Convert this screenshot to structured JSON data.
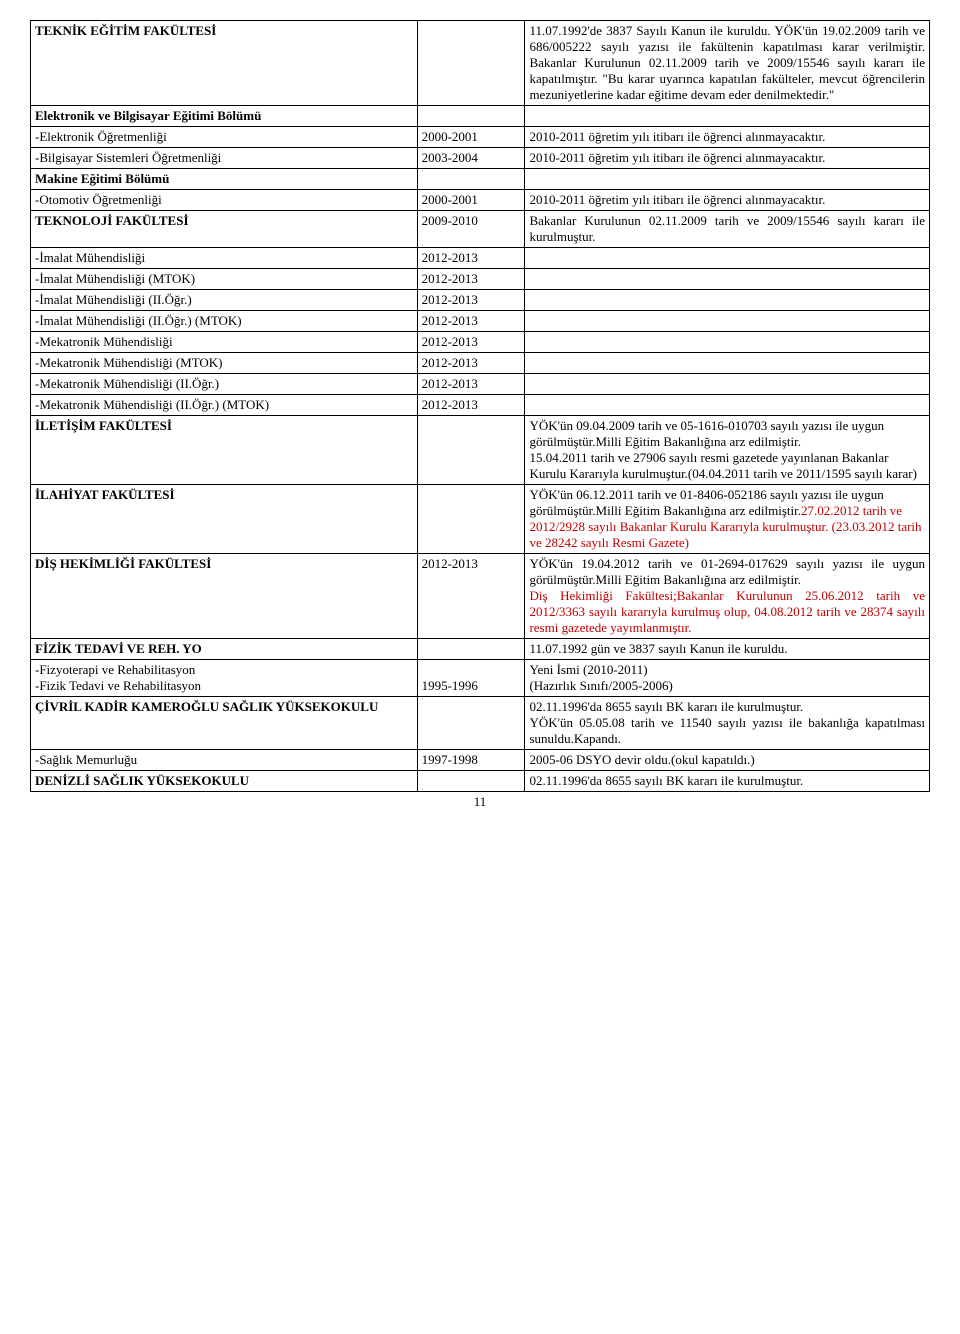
{
  "rows": [
    {
      "c1": "TEKNİK EĞİTİM FAKÜLTESİ",
      "c1Bold": true,
      "c2": "",
      "c3": "11.07.1992'de 3837 Sayılı Kanun ile kuruldu. YÖK'ün 19.02.2009 tarih ve 686/005222 sayılı yazısı ile fakültenin kapatılması karar verilmiştir. Bakanlar Kurulunun 02.11.2009 tarih ve 2009/15546 sayılı kararı ile kapatılmıştır. \"Bu karar uyarınca kapatılan fakülteler, mevcut öğrencilerin mezuniyetlerine kadar eğitime devam eder denilmektedir.\"",
      "c3Justify": true
    },
    {
      "c1": "Elektronik ve Bilgisayar Eğitimi Bölümü",
      "c1Bold": true,
      "c2": "",
      "c3": ""
    },
    {
      "c1": "-Elektronik Öğretmenliği",
      "c2": "2000-2001",
      "c3": "2010-2011 öğretim yılı itibarı ile öğrenci alınmayacaktır."
    },
    {
      "c1": "-Bilgisayar Sistemleri Öğretmenliği",
      "c2": "2003-2004",
      "c3": "2010-2011 öğretim yılı itibarı ile öğrenci alınmayacaktır."
    },
    {
      "c1": "Makine Eğitimi Bölümü",
      "c1Bold": true,
      "c2": "",
      "c3": ""
    },
    {
      "c1": "-Otomotiv Öğretmenliği",
      "c2": "2000-2001",
      "c3": "2010-2011 öğretim yılı itibarı ile öğrenci alınmayacaktır.",
      "c3Justify": true
    },
    {
      "c1": "TEKNOLOJİ FAKÜLTESİ",
      "c1Bold": true,
      "c2": "2009-2010",
      "c3": "Bakanlar Kurulunun 02.11.2009 tarih ve 2009/15546 sayılı kararı ile kurulmuştur.",
      "c3Justify": true
    },
    {
      "c1": "-İmalat Mühendisliği",
      "c2": "2012-2013",
      "c3": ""
    },
    {
      "c1": "-İmalat Mühendisliği (MTOK)",
      "c2": "2012-2013",
      "c3": ""
    },
    {
      "c1": "-İmalat Mühendisliği (II.Öğr.)",
      "c2": "2012-2013",
      "c3": ""
    },
    {
      "c1": "-İmalat Mühendisliği (II.Öğr.) (MTOK)",
      "c2": "2012-2013",
      "c3": ""
    },
    {
      "c1": "-Mekatronik Mühendisliği",
      "c2": "2012-2013",
      "c3": ""
    },
    {
      "c1": "-Mekatronik Mühendisliği (MTOK)",
      "c2": "2012-2013",
      "c3": ""
    },
    {
      "c1": "-Mekatronik Mühendisliği (II.Öğr.)",
      "c2": "2012-2013",
      "c3": ""
    },
    {
      "c1": "-Mekatronik Mühendisliği (II.Öğr.) (MTOK)",
      "c2": "2012-2013",
      "c3": ""
    },
    {
      "c1": "İLETİŞİM FAKÜLTESİ",
      "c1Bold": true,
      "c2": "",
      "c3": "YÖK'ün 09.04.2009 tarih ve 05-1616-010703 sayılı yazısı ile uygun görülmüştür.Milli Eğitim Bakanlığına arz edilmiştir.\n15.04.2011 tarih ve 27906 sayılı resmi gazetede yayınlanan Bakanlar Kurulu Kararıyla kurulmuştur.(04.04.2011 tarih ve 2011/1595 sayılı karar)"
    },
    {
      "c1": "İLAHİYAT FAKÜLTESİ",
      "c1Bold": true,
      "c2": "",
      "c3Parts": [
        {
          "text": "YÖK'ün 06.12.2011 tarih ve 01-8406-052186 sayılı yazısı ile uygun görülmüştür.Milli Eğitim Bakanlığına arz edilmiştir."
        },
        {
          "text": "27.02.2012 tarih ve 2012/2928 sayılı Bakanlar Kurulu Kararıyla kurulmuştur. (23.03.2012 tarih ve 28242 sayılı Resmi Gazete)",
          "red": true
        }
      ]
    },
    {
      "c1": "DİŞ HEKİMLİĞİ FAKÜLTESİ",
      "c1Bold": true,
      "c2": "2012-2013",
      "c3Parts": [
        {
          "text": "YÖK'ün 19.04.2012 tarih ve 01-2694-017629 sayılı yazısı ile uygun görülmüştür.Milli Eğitim Bakanlığına arz edilmiştir.\n"
        },
        {
          "text": "Diş Hekimliği Fakültesi;Bakanlar Kurulunun 25.06.2012 tarih ve 2012/3363 sayılı kararıyla kurulmuş olup, 04.08.2012 tarih ve 28374 sayılı resmi gazetede yayımlanmıştır.",
          "red": true,
          "justify": true
        }
      ]
    },
    {
      "c1": "FİZİK TEDAVİ VE REH. YO",
      "c1Bold": true,
      "c2": "",
      "c3": "11.07.1992 gün ve 3837 sayılı Kanun ile kuruldu."
    },
    {
      "multiline": true,
      "c1Lines": [
        "-Fizyoterapi ve Rehabilitasyon",
        "-Fizik Tedavi ve Rehabilitasyon"
      ],
      "c2": "\n1995-1996",
      "c3": "Yeni İsmi (2010-2011)\n(Hazırlık Sınıfı/2005-2006)"
    },
    {
      "c1": "ÇİVRİL KADİR KAMEROĞLU SAĞLIK YÜKSEKOKULU",
      "c1Bold": true,
      "c2": "",
      "c3Parts": [
        {
          "text": "02.11.1996'da 8655 sayılı BK kararı ile kurulmuştur.\n",
          "justify": true
        },
        {
          "text": "YÖK'ün 05.05.08 tarih ve 11540 sayılı yazısı ile bakanlığa kapatılması sunuldu.Kapandı."
        }
      ]
    },
    {
      "c1": "-Sağlık Memurluğu",
      "c2": "1997-1998",
      "c3": "2005-06 DSYO devir oldu.(okul kapatıldı.)"
    },
    {
      "c1": "DENİZLİ SAĞLIK YÜKSEKOKULU",
      "c1Bold": true,
      "c2": "",
      "c3": "02.11.1996'da 8655 sayılı BK kararı ile kurulmuştur.",
      "c3Justify": true
    }
  ],
  "pageNumber": "11"
}
